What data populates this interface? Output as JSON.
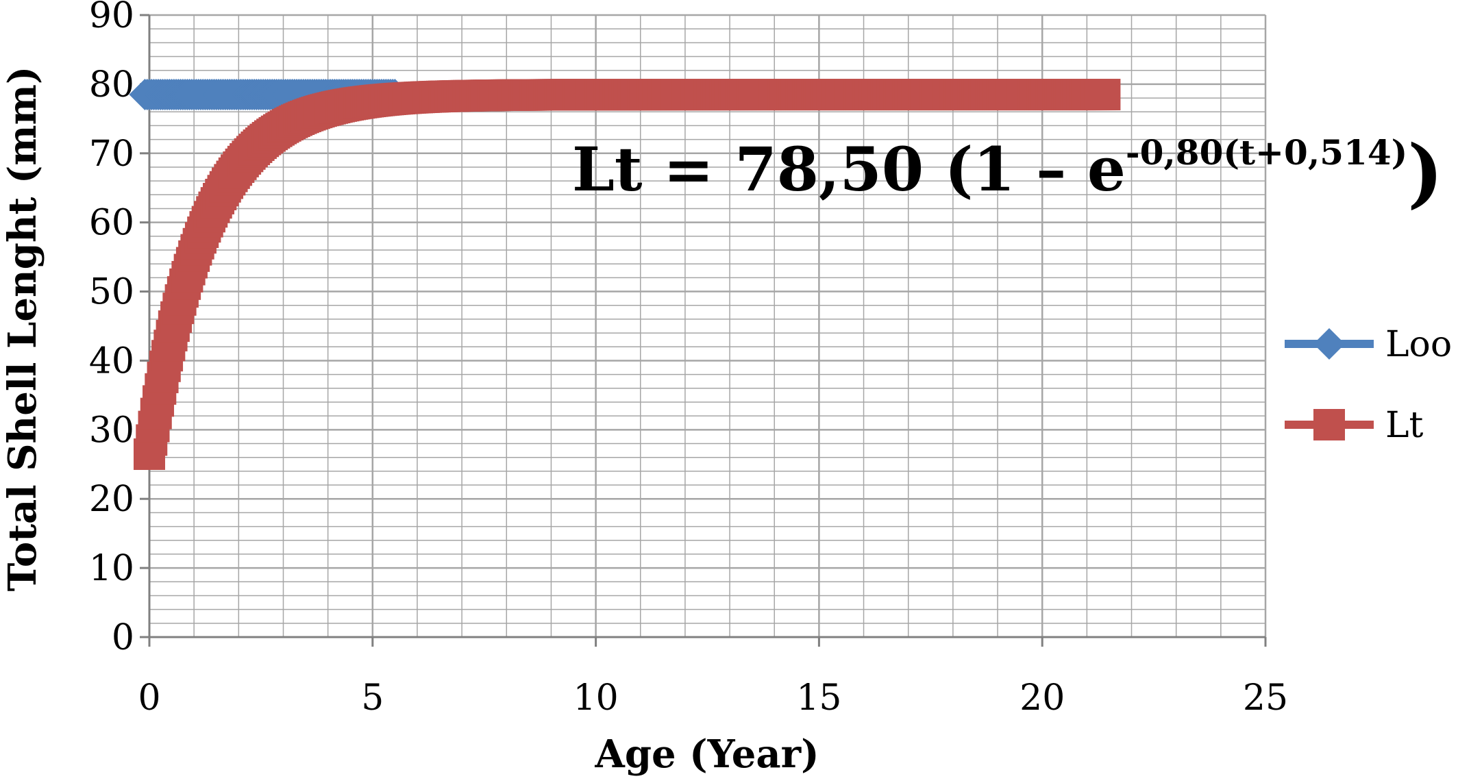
{
  "chart_data": {
    "type": "line",
    "title": "",
    "xlabel": "Age  (Year)",
    "ylabel": "Total Shell Lenght (mm)",
    "xlim": [
      0,
      25
    ],
    "ylim": [
      0,
      90
    ],
    "xticks": [
      "0",
      "5",
      "10",
      "15",
      "20",
      "25"
    ],
    "yticks": [
      "0",
      "10",
      "20",
      "30",
      "40",
      "50",
      "60",
      "70",
      "80",
      "90"
    ],
    "grid": true,
    "legend_position": "right",
    "annotation": {
      "main": "Lt = 78,50 (1 – e",
      "superscript": "-0,80(t+0,514)",
      "close": ")"
    },
    "series": [
      {
        "name": "Loo",
        "color": "#4F81BD",
        "marker": "diamond",
        "constant": 78.5,
        "x_start": -0.1,
        "x_end": 5.5,
        "x_step": 0.05
      },
      {
        "name": "Lt",
        "color": "#C0504D",
        "marker": "square",
        "Linf": 78.5,
        "K": 0.8,
        "t0": -0.514,
        "x_start": 0,
        "x_end": 21.4,
        "x_step": 0.05
      }
    ],
    "colors": {
      "grid": "#a6a6a6",
      "axis": "#808080",
      "loo": "#4F81BD",
      "lt": "#C0504D"
    }
  }
}
